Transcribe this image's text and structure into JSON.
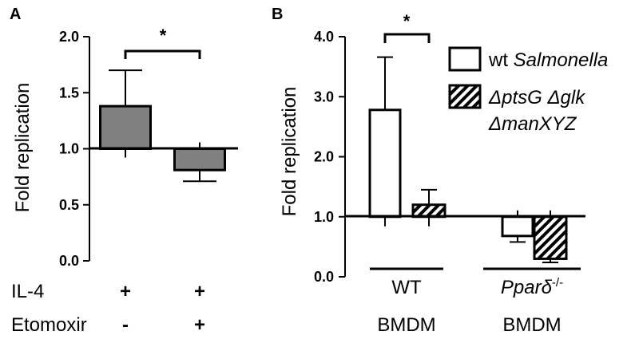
{
  "figure": {
    "panel_a": {
      "letter": "A",
      "ylabel": "Fold replication",
      "row_labels": [
        "IL-4",
        "Etomoxir"
      ],
      "il4": [
        "+",
        "+"
      ],
      "etomoxir": [
        "-",
        "+"
      ],
      "sig_mark": "*"
    },
    "panel_b": {
      "letter": "B",
      "ylabel": "Fold replication",
      "groups": [
        "WT",
        "Pparδ⁻/⁻"
      ],
      "group_sub": [
        "BMDM",
        "BMDM"
      ],
      "sig_mark": "*",
      "legend": {
        "wt_prefix": "wt ",
        "wt_italic": "Salmonella",
        "mut_line1": "ΔptsG Δglk",
        "mut_line2": "ΔmanXYZ"
      }
    },
    "colors": {
      "bar_gray": "#808080",
      "axis": "#000000",
      "hatch": "#000000",
      "open": "#ffffff"
    }
  },
  "chart_data": [
    {
      "type": "bar",
      "categories": [
        "IL-4 + / Etomoxir -",
        "IL-4 + / Etomoxir +"
      ],
      "baseline": 1.0,
      "values": [
        1.38,
        0.81
      ],
      "errors": [
        0.32,
        0.1
      ],
      "yticks": [
        "0.0",
        "0.5",
        "1.0",
        "1.5",
        "2.0"
      ],
      "ylim": [
        0,
        2.0
      ],
      "ylabel": "Fold replication",
      "significance": [
        {
          "between": [
            0,
            1
          ],
          "label": "*"
        }
      ]
    },
    {
      "type": "bar",
      "categories": [
        "WT BMDM",
        "Pparδ-/- BMDM"
      ],
      "baseline": 1.0,
      "series": [
        {
          "name": "wt Salmonella",
          "values": [
            2.78,
            0.68
          ],
          "errors": [
            0.88,
            0.1
          ]
        },
        {
          "name": "ΔptsG Δglk ΔmanXYZ",
          "values": [
            1.2,
            0.3
          ],
          "errors": [
            0.25,
            0.06
          ]
        }
      ],
      "yticks": [
        "0.0",
        "1.0",
        "2.0",
        "3.0",
        "4.0"
      ],
      "ylim": [
        0,
        4.0
      ],
      "ylabel": "Fold replication",
      "significance": [
        {
          "group": 0,
          "label": "*"
        }
      ]
    }
  ]
}
